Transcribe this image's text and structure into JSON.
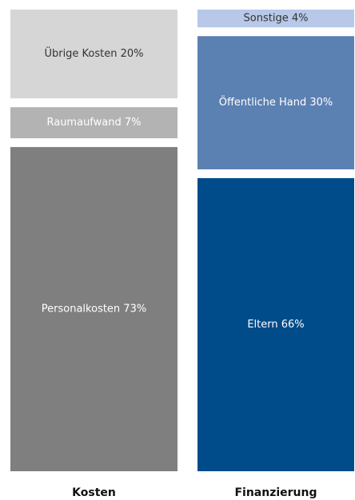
{
  "chart_data": {
    "type": "stacked_bar",
    "categories": [
      "Kosten",
      "Finanzierung"
    ],
    "stacks": [
      [
        {
          "label": "Personalkosten 73%",
          "value": 73,
          "color": "#7f7f7f"
        },
        {
          "label": "Raumaufwand 7%",
          "value": 7,
          "color": "#b3b3b3"
        },
        {
          "label": "Übrige Kosten 20%",
          "value": 20,
          "color": "#d6d6d6"
        }
      ],
      [
        {
          "label": "Eltern 66%",
          "value": 66,
          "color": "#004b8a"
        },
        {
          "label": "Öffentliche Hand 30%",
          "value": 30,
          "color": "#5b80b2"
        },
        {
          "label": "Sonstige 4%",
          "value": 4,
          "color": "#b7c8e8"
        }
      ]
    ]
  }
}
